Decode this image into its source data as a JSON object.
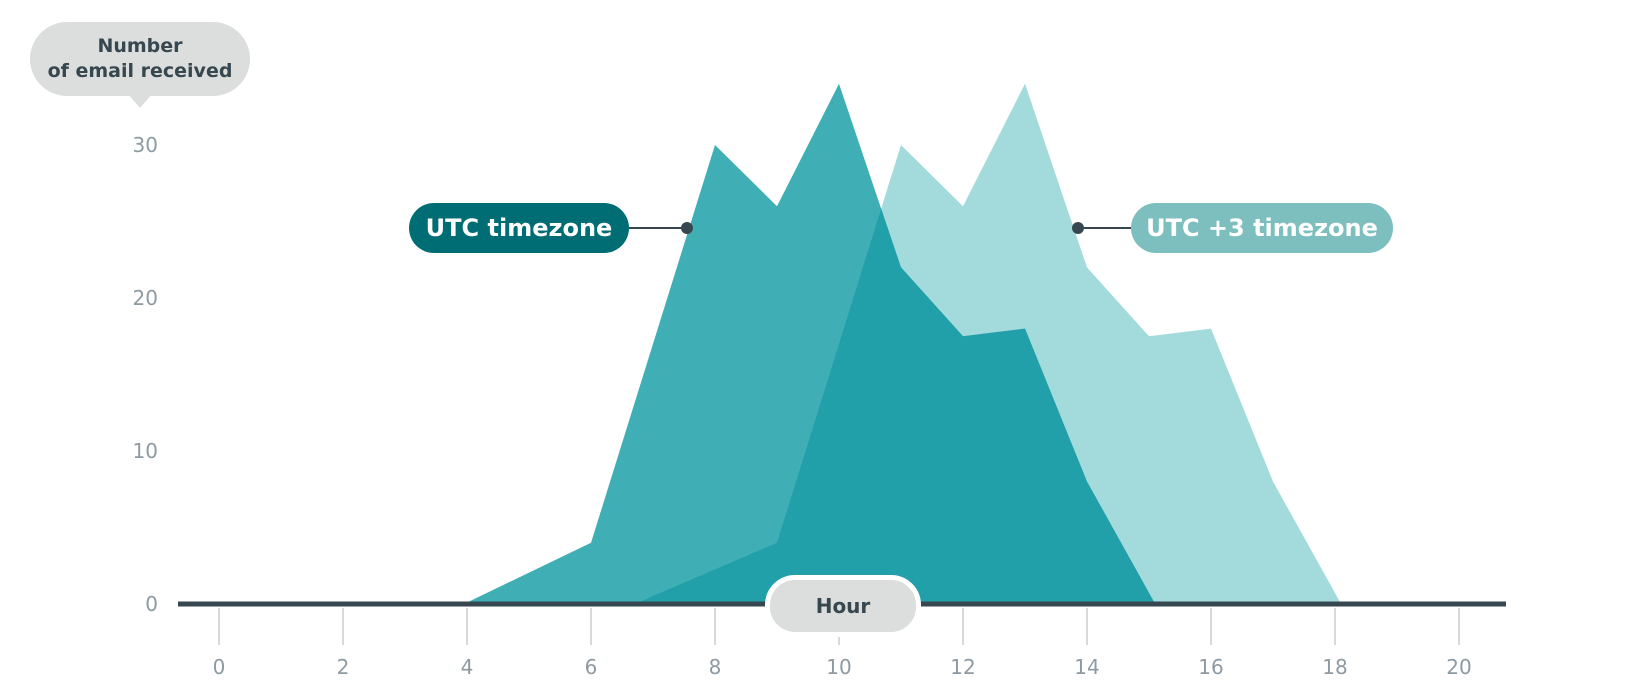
{
  "colors": {
    "utc": "#2aa5ad",
    "utc3": "#a3dbdc",
    "utc_tag": "#006d75",
    "utc3_tag": "#7cbfbe",
    "axis": "#37474f",
    "grid": "#8e9aa2",
    "tick_text": "#8e9aa2",
    "label_bg": "#dcdedd"
  },
  "chart_data": {
    "type": "area",
    "ylabel": "Number of email received",
    "ylabel_lines": [
      "Number",
      "of email received"
    ],
    "xlabel": "Hour",
    "xlim": [
      0,
      20.9
    ],
    "ylim": [
      0,
      30
    ],
    "xticks": [
      0,
      2,
      4,
      6,
      8,
      10,
      12,
      14,
      16,
      18,
      20
    ],
    "yticks": [
      0,
      10,
      20,
      30
    ],
    "grid": "horizontal",
    "series": [
      {
        "name": "UTC timezone",
        "x": [
          3.95,
          6,
          8,
          9,
          10,
          11,
          12,
          13,
          14,
          15.1
        ],
        "y": [
          0,
          4,
          30,
          26,
          34,
          22,
          17.5,
          18,
          8,
          0
        ]
      },
      {
        "name": "UTC +3 timezone",
        "x": [
          6.7,
          9,
          11,
          12,
          13,
          14,
          15,
          16,
          17,
          18.1
        ],
        "y": [
          0,
          4,
          30,
          26,
          34,
          22,
          17.5,
          18,
          8,
          0
        ]
      }
    ]
  }
}
